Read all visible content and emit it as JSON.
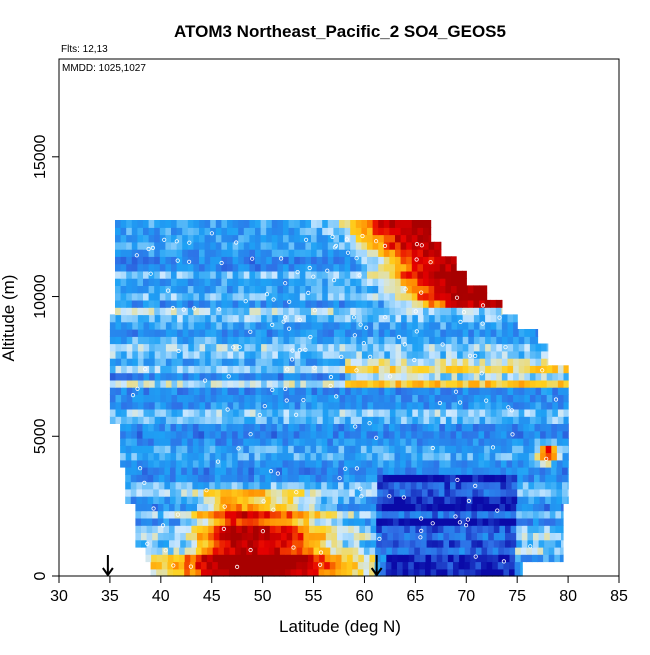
{
  "chart_data": {
    "type": "heatmap",
    "title": "ATOM3 Northeast_Pacific_2 SO4_GEOS5",
    "annotations": [
      "Flts: 12,13",
      "MMDD: 1025,1027"
    ],
    "xlabel": "Latitude (deg N)",
    "ylabel": "Altitude (m)",
    "xlim": [
      30,
      85
    ],
    "ylim": [
      0,
      18500
    ],
    "x_ticks": [
      30,
      35,
      40,
      45,
      50,
      55,
      60,
      65,
      70,
      75,
      80,
      85
    ],
    "y_ticks": [
      0,
      5000,
      10000,
      15000
    ],
    "x_tick_labels": [
      "30",
      "35",
      "40",
      "45",
      "50",
      "55",
      "60",
      "65",
      "70",
      "75",
      "80",
      "85"
    ],
    "y_tick_labels": [
      "0",
      "5000",
      "10000",
      "15000"
    ],
    "arrow_markers_latitude": [
      34.8,
      61.2
    ],
    "grid": false,
    "legend": "none",
    "colors": {
      "very_low": "#0a0aa8",
      "low": "#2f6fe6",
      "mid_low": "#1ea2f5",
      "mid": "#cfe9ff",
      "mid_high": "#ffd21e",
      "high": "#ff8a00",
      "very_high": "#e60000",
      "max": "#a80000"
    }
  }
}
